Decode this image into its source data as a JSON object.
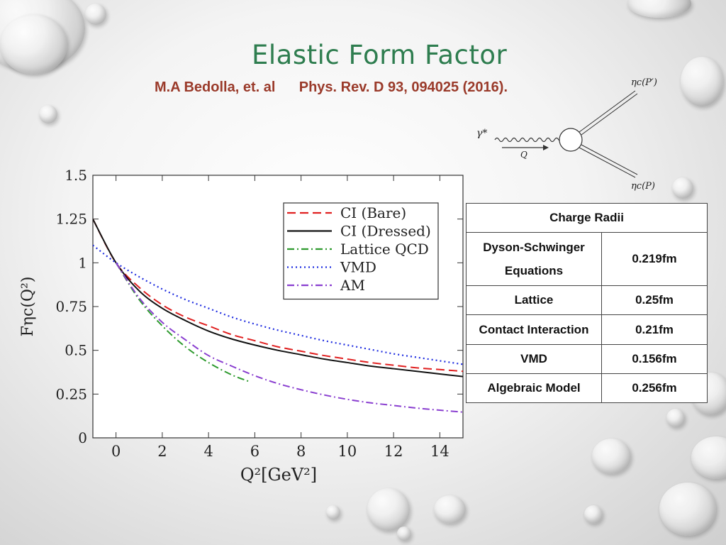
{
  "slide": {
    "title": "Elastic Form Factor",
    "citation": {
      "authors": "M.A Bedolla, et. al",
      "journal": "Phys. Rev. D 93, 094025 (2016)."
    }
  },
  "feynman_diagram": {
    "photon_label": "γ*",
    "momentum_label": "Q",
    "outgoing_top_label": "ηc(P′)",
    "outgoing_bottom_label": "ηc(P)"
  },
  "charge_radii_table": {
    "header": "Charge Radii",
    "rows": [
      {
        "label": "Dyson-Schwinger Equations",
        "value": "0.219fm"
      },
      {
        "label": "Lattice",
        "value": "0.25fm"
      },
      {
        "label": "Contact Interaction",
        "value": "0.21fm"
      },
      {
        "label": "VMD",
        "value": "0.156fm"
      },
      {
        "label": "Algebraic Model",
        "value": "0.256fm"
      }
    ]
  },
  "chart_data": {
    "type": "line",
    "xlabel": "Q²[GeV²]",
    "ylabel": "Fηc(Q²)",
    "xlim": [
      -1,
      15
    ],
    "ylim": [
      0,
      1.5
    ],
    "xticks": [
      "0",
      "2",
      "4",
      "6",
      "8",
      "10",
      "12",
      "14"
    ],
    "yticks": [
      "0",
      "0.25",
      "0.5",
      "0.75",
      "1",
      "1.25",
      "1.5"
    ],
    "legend_position": "top-right",
    "series": [
      {
        "name": "CI (Bare)",
        "color": "#e02020",
        "dash": "long-dash",
        "x": [
          -1,
          0,
          1,
          2,
          3,
          4,
          5,
          6,
          7,
          8,
          9,
          10,
          11,
          12,
          13,
          14,
          15
        ],
        "y": [
          1.25,
          1.0,
          0.86,
          0.76,
          0.69,
          0.64,
          0.59,
          0.555,
          0.52,
          0.495,
          0.47,
          0.45,
          0.43,
          0.415,
          0.4,
          0.39,
          0.38
        ]
      },
      {
        "name": "CI (Dressed)",
        "color": "#111111",
        "dash": "solid",
        "x": [
          -1,
          0,
          1,
          2,
          3,
          4,
          5,
          6,
          7,
          8,
          9,
          10,
          11,
          12,
          13,
          14,
          15
        ],
        "y": [
          1.25,
          1.0,
          0.84,
          0.74,
          0.67,
          0.61,
          0.565,
          0.53,
          0.5,
          0.475,
          0.45,
          0.43,
          0.41,
          0.395,
          0.38,
          0.365,
          0.35
        ]
      },
      {
        "name": "Lattice QCD",
        "color": "#2e9a2e",
        "dash": "dash-dot",
        "x": [
          0,
          1,
          2,
          3,
          4,
          5,
          5.8
        ],
        "y": [
          1.0,
          0.79,
          0.64,
          0.52,
          0.43,
          0.36,
          0.32
        ]
      },
      {
        "name": "VMD",
        "color": "#1f2de0",
        "dash": "dotted",
        "x": [
          -1,
          0,
          1,
          2,
          3,
          4,
          5,
          6,
          7,
          8,
          9,
          10,
          11,
          12,
          13,
          14,
          15
        ],
        "y": [
          1.1,
          1.0,
          0.92,
          0.85,
          0.79,
          0.74,
          0.69,
          0.65,
          0.615,
          0.585,
          0.555,
          0.53,
          0.505,
          0.48,
          0.46,
          0.44,
          0.42
        ]
      },
      {
        "name": "AM",
        "color": "#8a3fd0",
        "dash": "dash-dot",
        "x": [
          0,
          1,
          2,
          3,
          4,
          5,
          6,
          7,
          8,
          9,
          10,
          11,
          12,
          13,
          14,
          15
        ],
        "y": [
          1.0,
          0.8,
          0.66,
          0.56,
          0.47,
          0.41,
          0.355,
          0.31,
          0.275,
          0.245,
          0.22,
          0.2,
          0.185,
          0.17,
          0.158,
          0.147
        ]
      }
    ]
  }
}
